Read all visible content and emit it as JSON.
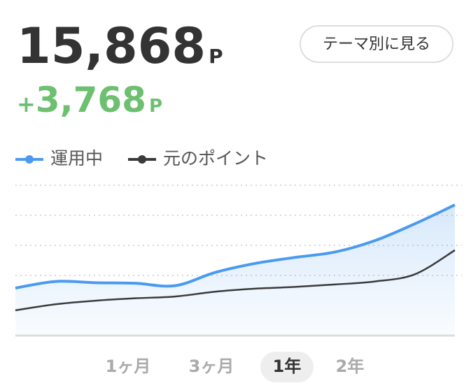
{
  "balance": {
    "value": "15,868",
    "unit": "P"
  },
  "change": {
    "sign": "+",
    "value": "3,768",
    "unit": "P"
  },
  "button": "テーマ別に見る",
  "tabs": {
    "items": [
      "1ヶ月",
      "3ヶ月",
      "1年",
      "2年"
    ],
    "selected": 2
  },
  "chart_data": {
    "type": "line",
    "categories": [
      null,
      null,
      null,
      null,
      null,
      null,
      null,
      null,
      null,
      null,
      null,
      null
    ],
    "series": [
      {
        "name": "運用中",
        "color": "#4a9af0",
        "values": [
          8950,
          9500,
          9400,
          9350,
          9150,
          10250,
          11000,
          11500,
          11950,
          12900,
          14300,
          15868
        ]
      },
      {
        "name": "元のポイント",
        "color": "#3a3a3a",
        "values": [
          7100,
          7600,
          7900,
          8100,
          8250,
          8650,
          8900,
          9050,
          9250,
          9500,
          10100,
          12100
        ]
      }
    ],
    "ylim": [
      5000,
      17500
    ],
    "yticks": [
      10000,
      12500,
      15000,
      17500
    ],
    "grid": true
  }
}
